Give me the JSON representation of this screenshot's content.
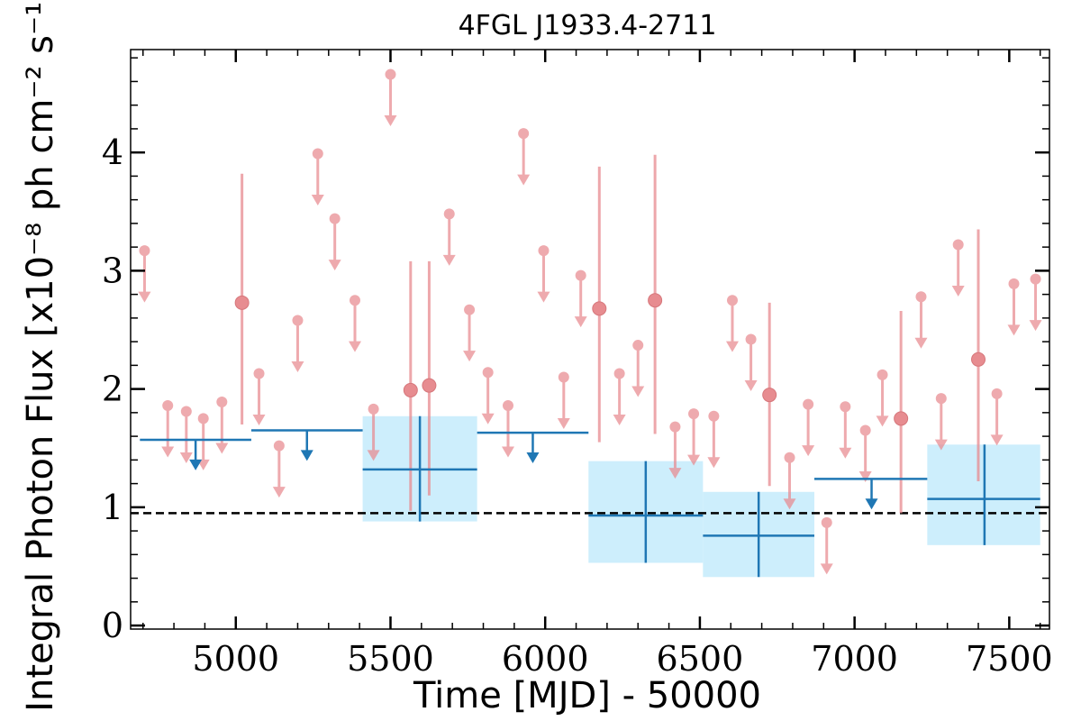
{
  "chart_data": {
    "type": "scatter",
    "title": "4FGL J1933.4-2711",
    "xlabel": "Time [MJD] - 50000",
    "ylabel": "Integral Photon Flux [x10⁻⁸ ph cm⁻² s⁻¹]",
    "xlim": [
      4660,
      7630
    ],
    "ylim": [
      -0.03,
      4.87
    ],
    "x_ticks": [
      5000,
      5500,
      6000,
      6500,
      7000,
      7500
    ],
    "x_tick_labels": [
      "5000",
      "5500",
      "6000",
      "6500",
      "7000",
      "7500"
    ],
    "y_ticks": [
      0,
      1,
      2,
      3,
      4
    ],
    "y_tick_labels": [
      "0",
      "1",
      "2",
      "3",
      "4"
    ],
    "grid": false,
    "mean_flux_line": 0.95,
    "short_bins": {
      "upper_limits": [
        [
          4705,
          3.17
        ],
        [
          4780,
          1.86
        ],
        [
          4840,
          1.81
        ],
        [
          4895,
          1.75
        ],
        [
          4955,
          1.89
        ],
        [
          5075,
          2.13
        ],
        [
          5140,
          1.52
        ],
        [
          5200,
          2.58
        ],
        [
          5265,
          3.99
        ],
        [
          5320,
          3.44
        ],
        [
          5385,
          2.75
        ],
        [
          5445,
          1.83
        ],
        [
          5500,
          4.66
        ],
        [
          5690,
          3.48
        ],
        [
          5755,
          2.67
        ],
        [
          5815,
          2.14
        ],
        [
          5880,
          1.86
        ],
        [
          5930,
          4.16
        ],
        [
          5995,
          3.17
        ],
        [
          6060,
          2.1
        ],
        [
          6115,
          2.96
        ],
        [
          6240,
          2.13
        ],
        [
          6300,
          2.37
        ],
        [
          6420,
          1.68
        ],
        [
          6480,
          1.79
        ],
        [
          6545,
          1.77
        ],
        [
          6605,
          2.75
        ],
        [
          6665,
          2.42
        ],
        [
          6790,
          1.42
        ],
        [
          6850,
          1.87
        ],
        [
          6910,
          0.87
        ],
        [
          6970,
          1.85
        ],
        [
          7035,
          1.65
        ],
        [
          7090,
          2.12
        ],
        [
          7215,
          2.78
        ],
        [
          7280,
          1.92
        ],
        [
          7335,
          3.22
        ],
        [
          7460,
          1.96
        ],
        [
          7515,
          2.89
        ],
        [
          7585,
          2.93
        ]
      ],
      "detections": [
        {
          "x": 5020,
          "y": 2.73,
          "ylo": 1.7,
          "yhi": 3.82
        },
        {
          "x": 5565,
          "y": 1.99,
          "ylo": 0.97,
          "yhi": 3.08
        },
        {
          "x": 5625,
          "y": 2.03,
          "ylo": 1.1,
          "yhi": 3.08
        },
        {
          "x": 6175,
          "y": 2.68,
          "ylo": 1.55,
          "yhi": 3.88
        },
        {
          "x": 6355,
          "y": 2.75,
          "ylo": 1.62,
          "yhi": 3.98
        },
        {
          "x": 6725,
          "y": 1.95,
          "ylo": 1.18,
          "yhi": 2.73
        },
        {
          "x": 7150,
          "y": 1.75,
          "ylo": 0.95,
          "yhi": 2.66
        },
        {
          "x": 7400,
          "y": 2.25,
          "ylo": 1.22,
          "yhi": 3.35
        }
      ]
    },
    "long_bins": {
      "upper_limits": [
        {
          "x0": 4690,
          "x1": 5050,
          "x": 4870,
          "y": 1.57
        },
        {
          "x0": 5050,
          "x1": 5410,
          "x": 5230,
          "y": 1.65
        },
        {
          "x0": 5780,
          "x1": 6140,
          "x": 5960,
          "y": 1.63
        },
        {
          "x0": 6870,
          "x1": 7235,
          "x": 7055,
          "y": 1.24
        }
      ],
      "detections": [
        {
          "x0": 5410,
          "x1": 5780,
          "x": 5595,
          "y": 1.32,
          "ylo": 0.88,
          "yhi": 1.77
        },
        {
          "x0": 6140,
          "x1": 6510,
          "x": 6325,
          "y": 0.93,
          "ylo": 0.53,
          "yhi": 1.39
        },
        {
          "x0": 6510,
          "x1": 6870,
          "x": 6690,
          "y": 0.76,
          "ylo": 0.41,
          "yhi": 1.13
        },
        {
          "x0": 7235,
          "x1": 7600,
          "x": 7420,
          "y": 1.07,
          "ylo": 0.68,
          "yhi": 1.53
        }
      ]
    },
    "colors": {
      "short_bin": "#e88a8f",
      "long_bin": "#1f77b4",
      "long_bin_fill": "#cdeefc",
      "mean_line": "#000000"
    }
  }
}
